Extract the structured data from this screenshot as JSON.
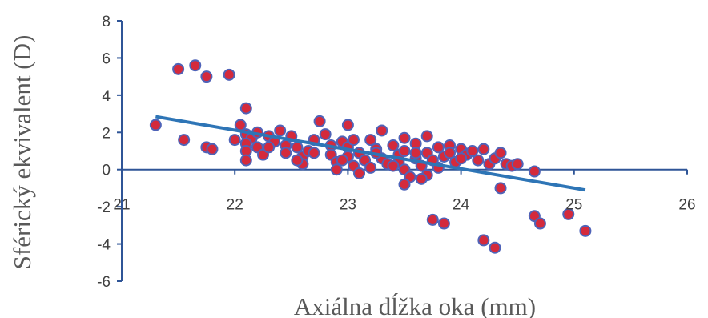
{
  "chart_data": {
    "type": "scatter",
    "xlabel": "Axiálna dĺžka oka (mm)",
    "ylabel": "Sférický ekvivalent (D)",
    "xlim": [
      21,
      26
    ],
    "ylim": [
      -6,
      8
    ],
    "x_ticks": [
      "21",
      "22",
      "23",
      "24",
      "25",
      "26"
    ],
    "y_ticks": [
      "8",
      "6",
      "4",
      "2",
      "0",
      "-2",
      "-4",
      "-6"
    ],
    "grid": false,
    "legend": "none",
    "colors": {
      "marker_fill": "#d42a3c",
      "marker_edge": "#4f63b8",
      "trendline": "#2e75b6",
      "axis": "#2f5597"
    },
    "trendline": {
      "x": [
        21.3,
        25.1
      ],
      "y": [
        2.85,
        -1.1
      ]
    },
    "points": [
      [
        21.3,
        2.4
      ],
      [
        21.5,
        5.4
      ],
      [
        21.55,
        1.6
      ],
      [
        21.65,
        5.6
      ],
      [
        21.75,
        5.0
      ],
      [
        21.75,
        1.2
      ],
      [
        21.8,
        1.1
      ],
      [
        21.95,
        5.1
      ],
      [
        22.0,
        1.6
      ],
      [
        22.05,
        2.4
      ],
      [
        22.1,
        3.3
      ],
      [
        22.1,
        1.9
      ],
      [
        22.15,
        1.7
      ],
      [
        22.1,
        1.4
      ],
      [
        22.1,
        1.0
      ],
      [
        22.1,
        0.5
      ],
      [
        22.2,
        2.0
      ],
      [
        22.2,
        1.2
      ],
      [
        22.25,
        0.8
      ],
      [
        22.3,
        1.8
      ],
      [
        22.35,
        1.5
      ],
      [
        22.4,
        2.1
      ],
      [
        22.45,
        1.3
      ],
      [
        22.45,
        0.9
      ],
      [
        22.5,
        1.8
      ],
      [
        22.55,
        1.2
      ],
      [
        22.6,
        0.7
      ],
      [
        22.6,
        0.3
      ],
      [
        22.55,
        0.5
      ],
      [
        22.65,
        1.0
      ],
      [
        22.7,
        1.6
      ],
      [
        22.75,
        2.6
      ],
      [
        22.8,
        1.9
      ],
      [
        22.85,
        1.3
      ],
      [
        22.85,
        0.8
      ],
      [
        22.9,
        0.4
      ],
      [
        22.9,
        0.0
      ],
      [
        22.95,
        1.5
      ],
      [
        23.0,
        2.4
      ],
      [
        23.0,
        1.2
      ],
      [
        23.0,
        0.7
      ],
      [
        23.05,
        0.2
      ],
      [
        23.05,
        1.6
      ],
      [
        23.1,
        0.9
      ],
      [
        23.1,
        -0.2
      ],
      [
        23.15,
        0.5
      ],
      [
        23.2,
        1.6
      ],
      [
        23.2,
        0.1
      ],
      [
        23.25,
        1.1
      ],
      [
        23.3,
        2.1
      ],
      [
        23.3,
        0.6
      ],
      [
        23.35,
        0.3
      ],
      [
        23.4,
        1.3
      ],
      [
        23.45,
        0.8
      ],
      [
        23.45,
        0.4
      ],
      [
        23.5,
        1.7
      ],
      [
        23.5,
        1.0
      ],
      [
        23.5,
        0.0
      ],
      [
        23.55,
        -0.4
      ],
      [
        23.6,
        1.4
      ],
      [
        23.6,
        0.6
      ],
      [
        23.65,
        0.2
      ],
      [
        23.7,
        1.8
      ],
      [
        23.7,
        0.9
      ],
      [
        23.7,
        -0.3
      ],
      [
        23.75,
        0.5
      ],
      [
        23.8,
        1.2
      ],
      [
        23.8,
        0.1
      ],
      [
        23.85,
        0.7
      ],
      [
        23.9,
        1.3
      ],
      [
        23.95,
        0.4
      ],
      [
        24.0,
        1.1
      ],
      [
        24.05,
        0.8
      ],
      [
        24.1,
        1.0
      ],
      [
        24.15,
        0.5
      ],
      [
        24.2,
        1.1
      ],
      [
        24.25,
        0.3
      ],
      [
        24.3,
        0.6
      ],
      [
        24.35,
        0.9
      ],
      [
        24.4,
        0.3
      ],
      [
        24.45,
        0.2
      ],
      [
        24.5,
        0.3
      ],
      [
        24.65,
        -0.1
      ],
      [
        23.5,
        -0.8
      ],
      [
        23.65,
        -0.5
      ],
      [
        23.75,
        -2.7
      ],
      [
        23.85,
        -2.9
      ],
      [
        24.2,
        -3.8
      ],
      [
        24.3,
        -4.2
      ],
      [
        24.35,
        -1.0
      ],
      [
        24.65,
        -2.5
      ],
      [
        24.7,
        -2.9
      ],
      [
        24.95,
        -2.4
      ],
      [
        25.1,
        -3.3
      ],
      [
        22.3,
        1.2
      ],
      [
        22.7,
        0.9
      ],
      [
        22.95,
        0.5
      ],
      [
        23.25,
        0.9
      ],
      [
        23.4,
        0.2
      ],
      [
        23.6,
        0.9
      ],
      [
        24.0,
        0.6
      ],
      [
        23.9,
        0.9
      ]
    ]
  }
}
